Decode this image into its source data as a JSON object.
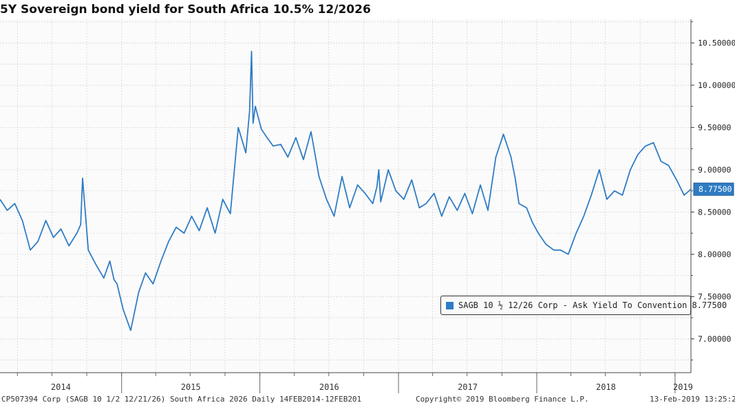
{
  "chart_data": {
    "type": "line",
    "title": "5Y Sovereign bond yield for South Africa 10.5% 12/2026",
    "x_tick_labels": [
      "2014",
      "2015",
      "2016",
      "2017",
      "2018",
      "2019"
    ],
    "y_tick_labels": [
      "7.00000",
      "7.50000",
      "8.00000",
      "8.50000",
      "9.00000",
      "9.50000",
      "10.00000",
      "10.50000"
    ],
    "ylim": [
      6.6,
      10.78
    ],
    "xlim": [
      "2014-02-14",
      "2019-02-12"
    ],
    "grid": true,
    "last_value_label": "8.77500",
    "legend": {
      "position": "bottom-right",
      "entry": "SAGB 10 ½ 12/26 Corp - Ask Yield To Convention 8.77500"
    },
    "series": [
      {
        "name": "SAGB 10 ½ 12/26 Corp - Ask Yield To Convention",
        "color": "#2f7cc4",
        "x": [
          "2014-02-14",
          "2014-03-05",
          "2014-03-25",
          "2014-04-14",
          "2014-05-05",
          "2014-05-25",
          "2014-06-15",
          "2014-07-05",
          "2014-07-25",
          "2014-08-15",
          "2014-09-05",
          "2014-09-15",
          "2014-09-20",
          "2014-10-05",
          "2014-10-25",
          "2014-11-15",
          "2014-12-01",
          "2014-12-12",
          "2014-12-20",
          "2015-01-05",
          "2015-01-25",
          "2015-02-15",
          "2015-03-05",
          "2015-03-25",
          "2015-04-15",
          "2015-05-05",
          "2015-05-25",
          "2015-06-15",
          "2015-07-05",
          "2015-07-25",
          "2015-08-15",
          "2015-09-05",
          "2015-09-25",
          "2015-10-15",
          "2015-11-05",
          "2015-11-25",
          "2015-12-05",
          "2015-12-10",
          "2015-12-14",
          "2015-12-20",
          "2016-01-05",
          "2016-01-20",
          "2016-02-05",
          "2016-02-25",
          "2016-03-15",
          "2016-04-05",
          "2016-04-25",
          "2016-05-15",
          "2016-06-05",
          "2016-06-25",
          "2016-07-15",
          "2016-08-05",
          "2016-08-25",
          "2016-09-15",
          "2016-10-05",
          "2016-10-25",
          "2016-11-05",
          "2016-11-10",
          "2016-11-15",
          "2016-12-05",
          "2016-12-25",
          "2017-01-15",
          "2017-02-05",
          "2017-02-25",
          "2017-03-15",
          "2017-04-05",
          "2017-04-25",
          "2017-05-15",
          "2017-06-05",
          "2017-06-25",
          "2017-07-15",
          "2017-08-05",
          "2017-08-25",
          "2017-09-15",
          "2017-10-05",
          "2017-10-25",
          "2017-11-05",
          "2017-11-15",
          "2017-12-05",
          "2017-12-20",
          "2018-01-05",
          "2018-01-25",
          "2018-02-15",
          "2018-03-05",
          "2018-03-25",
          "2018-04-15",
          "2018-05-05",
          "2018-05-25",
          "2018-06-15",
          "2018-07-05",
          "2018-07-25",
          "2018-08-15",
          "2018-09-05",
          "2018-09-25",
          "2018-10-15",
          "2018-11-05",
          "2018-11-25",
          "2018-12-15",
          "2019-01-05",
          "2019-01-25",
          "2019-02-12"
        ],
        "values": [
          8.65,
          8.52,
          8.6,
          8.4,
          8.05,
          8.15,
          8.4,
          8.2,
          8.3,
          8.1,
          8.25,
          8.35,
          8.9,
          8.05,
          7.88,
          7.72,
          7.92,
          7.7,
          7.65,
          7.35,
          7.1,
          7.55,
          7.78,
          7.65,
          7.92,
          8.15,
          8.32,
          8.25,
          8.45,
          8.28,
          8.55,
          8.25,
          8.65,
          8.48,
          9.5,
          9.2,
          9.7,
          10.4,
          9.55,
          9.75,
          9.48,
          9.38,
          9.28,
          9.3,
          9.15,
          9.38,
          9.12,
          9.45,
          8.92,
          8.65,
          8.45,
          8.92,
          8.55,
          8.82,
          8.72,
          8.6,
          8.8,
          9.0,
          8.62,
          9.0,
          8.75,
          8.65,
          8.88,
          8.55,
          8.6,
          8.72,
          8.45,
          8.68,
          8.52,
          8.72,
          8.48,
          8.82,
          8.52,
          9.15,
          9.42,
          9.15,
          8.9,
          8.6,
          8.55,
          8.38,
          8.25,
          8.12,
          8.05,
          8.05,
          8.0,
          8.25,
          8.45,
          8.7,
          9.0,
          8.65,
          8.75,
          8.7,
          9.0,
          9.18,
          9.28,
          9.32,
          9.1,
          9.05,
          8.88,
          8.7,
          8.77
        ]
      }
    ]
  },
  "footer": {
    "left": "CP507394 Corp (SAGB 10 1/2 12/21/26) South Africa 2026  Daily 14FEB2014-12FEB201",
    "center": "Copyright© 2019 Bloomberg Finance L.P.",
    "right": "13-Feb-2019 13:25:28"
  }
}
